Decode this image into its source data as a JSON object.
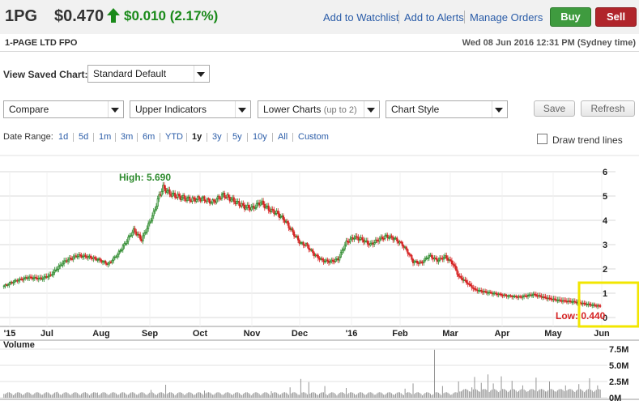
{
  "header": {
    "ticker": "1PG",
    "price": "$0.470",
    "change": "$0.010 (2.17%)",
    "links": [
      "Add to Watchlist",
      "Add to Alerts",
      "Manage Orders"
    ],
    "buy_label": "Buy",
    "sell_label": "Sell",
    "company": "1-PAGE LTD FPO",
    "datetime": "Wed 08 Jun 2016 12:31 PM (Sydney time)",
    "up_color": "#1a8a1a",
    "icon": "up-arrow-icon"
  },
  "controls": {
    "view_saved_label": "View Saved Chart:",
    "view_saved_value": "Standard Default",
    "compare": "Compare",
    "upper_indicators": "Upper Indicators",
    "lower_charts": "Lower Charts",
    "lower_charts_hint": "(up to 2)",
    "chart_style": "Chart Style",
    "save": "Save",
    "refresh": "Refresh",
    "date_range_label": "Date Range:",
    "ranges": [
      "1d",
      "5d",
      "1m",
      "3m",
      "6m",
      "YTD",
      "1y",
      "3y",
      "5y",
      "10y",
      "All",
      "Custom"
    ],
    "active_range": "1y",
    "trend_label": "Draw trend lines",
    "trend_checked": false
  },
  "chart_data": {
    "type": "candlestick",
    "price_y_ticks": [
      "0",
      "1",
      "2",
      "3",
      "4",
      "5",
      "6"
    ],
    "price_ylim": [
      0,
      6
    ],
    "x_tick_labels": [
      "'15",
      "Jul",
      "Aug",
      "Sep",
      "Oct",
      "Nov",
      "Dec",
      "'16",
      "Feb",
      "Mar",
      "Apr",
      "May",
      "Jun"
    ],
    "high_label": "High: 5.690",
    "low_label": "Low: 0.440",
    "high_value": 5.69,
    "low_value": 0.44,
    "volume_label": "Volume",
    "volume_y_ticks": [
      "0M",
      "2.5M",
      "5.0M",
      "7.5M"
    ],
    "volume_ylim": [
      0,
      7.5
    ],
    "up_color": "#2e8b2e",
    "down_color": "#d62424",
    "grid": true,
    "highlight_color": "#f2e600",
    "anchors": [
      [
        0,
        1.3
      ],
      [
        8,
        1.5
      ],
      [
        18,
        1.65
      ],
      [
        28,
        1.6
      ],
      [
        35,
        1.75
      ],
      [
        45,
        2.3
      ],
      [
        55,
        2.55
      ],
      [
        63,
        2.5
      ],
      [
        70,
        2.4
      ],
      [
        78,
        2.2
      ],
      [
        85,
        2.6
      ],
      [
        90,
        3.0
      ],
      [
        97,
        3.6
      ],
      [
        103,
        3.2
      ],
      [
        108,
        3.8
      ],
      [
        112,
        4.3
      ],
      [
        116,
        5.0
      ],
      [
        119,
        5.35
      ],
      [
        124,
        5.1
      ],
      [
        132,
        4.95
      ],
      [
        140,
        4.85
      ],
      [
        148,
        4.9
      ],
      [
        156,
        4.75
      ],
      [
        164,
        5.05
      ],
      [
        172,
        4.8
      ],
      [
        180,
        4.55
      ],
      [
        186,
        4.5
      ],
      [
        192,
        4.75
      ],
      [
        198,
        4.45
      ],
      [
        204,
        4.3
      ],
      [
        210,
        4.0
      ],
      [
        216,
        3.5
      ],
      [
        222,
        3.05
      ],
      [
        226,
        3.0
      ],
      [
        232,
        2.6
      ],
      [
        238,
        2.35
      ],
      [
        244,
        2.3
      ],
      [
        250,
        2.4
      ],
      [
        256,
        3.1
      ],
      [
        262,
        3.3
      ],
      [
        268,
        3.2
      ],
      [
        274,
        3.0
      ],
      [
        280,
        3.2
      ],
      [
        286,
        3.35
      ],
      [
        292,
        3.25
      ],
      [
        298,
        3.0
      ],
      [
        302,
        2.7
      ],
      [
        306,
        2.3
      ],
      [
        312,
        2.25
      ],
      [
        318,
        2.55
      ],
      [
        324,
        2.35
      ],
      [
        330,
        2.5
      ],
      [
        336,
        2.2
      ],
      [
        340,
        1.7
      ],
      [
        346,
        1.45
      ],
      [
        352,
        1.15
      ],
      [
        360,
        1.05
      ],
      [
        368,
        0.98
      ],
      [
        376,
        0.9
      ],
      [
        386,
        0.85
      ],
      [
        396,
        0.95
      ],
      [
        406,
        0.8
      ],
      [
        416,
        0.7
      ],
      [
        426,
        0.65
      ],
      [
        436,
        0.55
      ],
      [
        446,
        0.47
      ]
    ],
    "volume_spikes": [
      [
        0,
        0.6
      ],
      [
        40,
        0.9
      ],
      [
        70,
        0.8
      ],
      [
        110,
        1.2
      ],
      [
        121,
        2.0
      ],
      [
        150,
        1.1
      ],
      [
        200,
        1.0
      ],
      [
        214,
        1.6
      ],
      [
        222,
        2.9
      ],
      [
        228,
        2.4
      ],
      [
        240,
        1.8
      ],
      [
        256,
        1.5
      ],
      [
        300,
        1.4
      ],
      [
        306,
        2.2
      ],
      [
        322,
        7.4
      ],
      [
        328,
        1.8
      ],
      [
        340,
        2.5
      ],
      [
        350,
        1.6
      ],
      [
        352,
        3.2
      ],
      [
        357,
        2.3
      ],
      [
        362,
        3.6
      ],
      [
        366,
        2.2
      ],
      [
        372,
        3.3
      ],
      [
        380,
        2.6
      ],
      [
        388,
        1.9
      ],
      [
        398,
        3.1
      ],
      [
        408,
        2.5
      ],
      [
        420,
        1.9
      ],
      [
        430,
        2.1
      ],
      [
        438,
        3.0
      ],
      [
        444,
        1.9
      ]
    ]
  }
}
